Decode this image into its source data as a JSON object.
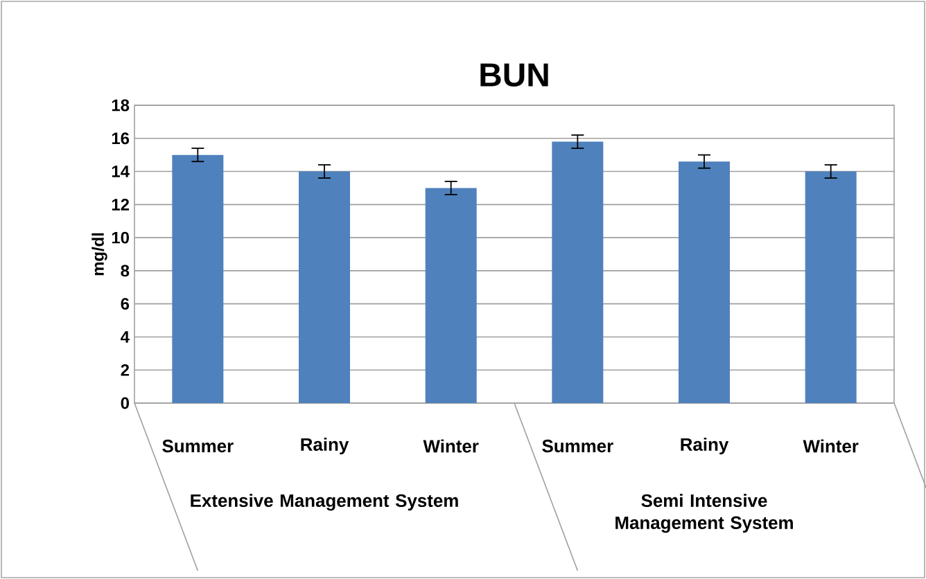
{
  "chart_data": {
    "type": "bar",
    "title": "BUN",
    "ylabel": "mg/dl",
    "categories": [
      "Summer",
      "Rainy",
      "Winter",
      "Summer",
      "Rainy",
      "Winter"
    ],
    "values": [
      15.0,
      14.0,
      13.0,
      15.8,
      14.6,
      14.0
    ],
    "errors": [
      0.4,
      0.4,
      0.4,
      0.4,
      0.4,
      0.4
    ],
    "color": "#4f81bd",
    "ylim": [
      0,
      18
    ],
    "yticks": [
      0,
      2,
      4,
      6,
      8,
      10,
      12,
      14,
      16,
      18
    ],
    "grid": "y",
    "annotations": [
      "Extensive Management System",
      "Semi Intensive Management System"
    ]
  }
}
